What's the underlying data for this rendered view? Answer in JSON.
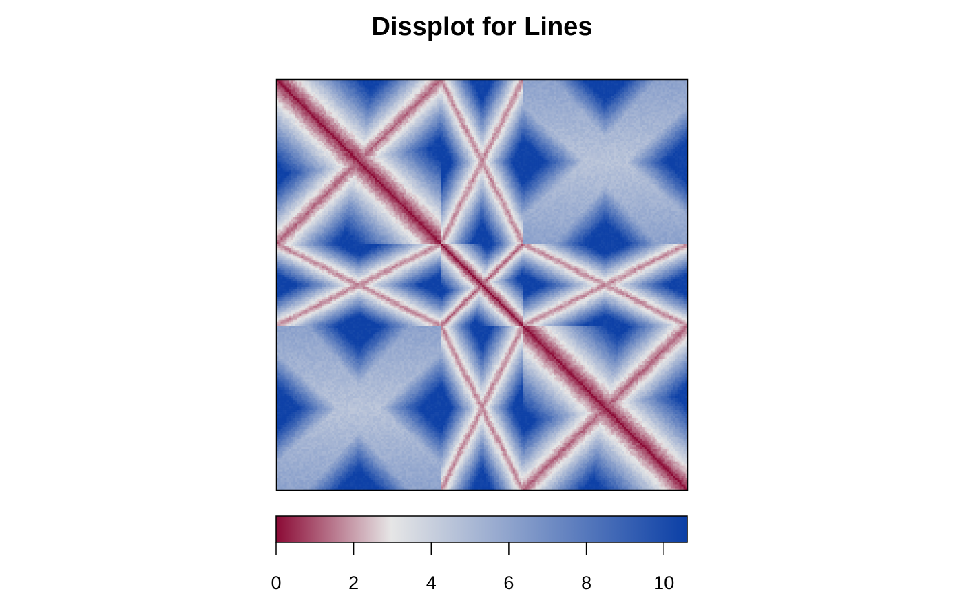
{
  "chart_data": {
    "type": "heatmap",
    "title": "Dissplot for Lines",
    "matrix": {
      "description_of_structure": "symmetric dissimilarity matrix with 3 blocks of size 80, 40, 80 (top-left to bottom-right)",
      "n": 200,
      "block_sizes": [
        80,
        40,
        80
      ],
      "diagonal_value": 0,
      "max_value": 10.5,
      "band_pattern": [
        "diagonal",
        "anti-diagonal"
      ]
    },
    "colorbar": {
      "range": [
        0,
        10.6
      ],
      "tick_values": [
        0,
        2,
        4,
        6,
        8,
        10
      ],
      "tick_labels": [
        "0",
        "2",
        "4",
        "6",
        "8",
        "10"
      ],
      "colors": {
        "low": "#8b0a35",
        "mid": "#e6e6e6",
        "high": "#0b3fa6"
      }
    }
  }
}
